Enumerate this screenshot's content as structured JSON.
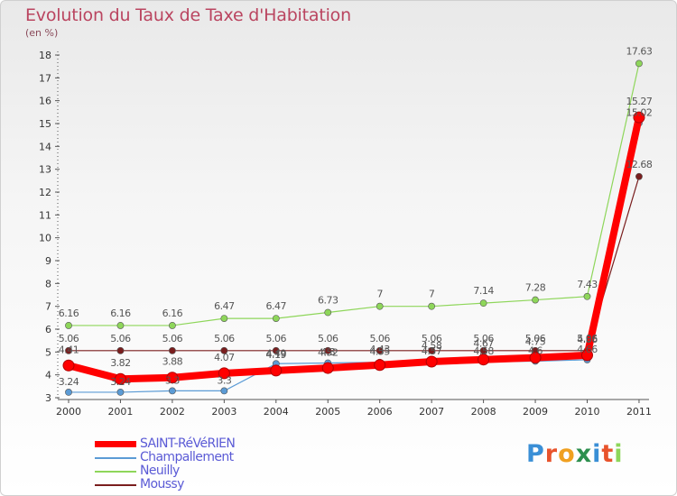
{
  "chart_data": {
    "type": "line",
    "title": "Evolution du Taux de Taxe d'Habitation",
    "unit_label": "(en %)",
    "x": [
      "2000",
      "2001",
      "2002",
      "2003",
      "2004",
      "2005",
      "2006",
      "2007",
      "2008",
      "2009",
      "2010",
      "2011"
    ],
    "ylim": [
      3,
      18
    ],
    "yticks": [
      "3",
      "4",
      "5",
      "6",
      "7",
      "8",
      "9",
      "10",
      "11",
      "12",
      "13",
      "14",
      "15",
      "16",
      "17",
      "18"
    ],
    "grid": false,
    "legend_position": "bottom-left",
    "series": [
      {
        "name": "SAINT-RéVéRIEN",
        "color": "#ff0000",
        "values": [
          4.41,
          3.82,
          3.88,
          4.07,
          4.19,
          4.3,
          4.43,
          4.58,
          4.67,
          4.75,
          4.86,
          15.27
        ],
        "labels": [
          "4.41",
          "3.82",
          "3.88",
          "4.07",
          "4.19",
          "4.3",
          "4.43",
          "4.58",
          "4.67",
          "4.75",
          "4.86",
          "15.27"
        ]
      },
      {
        "name": "Champallement",
        "color": "#5b9bd5",
        "values": [
          3.24,
          3.24,
          3.3,
          3.3,
          4.49,
          4.52,
          4.55,
          4.57,
          4.58,
          4.6,
          4.66,
          15.02
        ],
        "labels": [
          "3.24",
          "3.24",
          "3.3",
          "3.3",
          "4.49",
          "4.52",
          "4.55",
          "4.57",
          "4.58",
          "4.6",
          "4.66",
          "15.02"
        ]
      },
      {
        "name": "Neuilly",
        "color": "#8ed65a",
        "values": [
          6.16,
          6.16,
          6.16,
          6.47,
          6.47,
          6.73,
          7,
          7,
          7.14,
          7.28,
          7.43,
          17.63
        ],
        "labels": [
          "6.16",
          "6.16",
          "6.16",
          "6.47",
          "6.47",
          "6.73",
          "7",
          "7",
          "7.14",
          "7.28",
          "7.43",
          "17.63"
        ]
      },
      {
        "name": "Moussy",
        "color": "#7a1e1e",
        "values": [
          5.06,
          5.06,
          5.06,
          5.06,
          5.06,
          5.06,
          5.06,
          5.06,
          5.06,
          5.06,
          5.06,
          12.68
        ],
        "labels": [
          "5.06",
          "5.06",
          "5.06",
          "5.06",
          "5.06",
          "5.06",
          "5.06",
          "5.06",
          "5.06",
          "5.06",
          "5.06",
          "12.68"
        ]
      }
    ]
  },
  "legend": {
    "items": [
      {
        "label": "SAINT-RéVéRIEN",
        "color": "#ff0000"
      },
      {
        "label": "Champallement",
        "color": "#5b9bd5"
      },
      {
        "label": "Neuilly",
        "color": "#8ed65a"
      },
      {
        "label": "Moussy",
        "color": "#7a1e1e"
      }
    ]
  },
  "logo": {
    "letters": [
      "P",
      "r",
      "o",
      "x",
      "i",
      "t",
      "i"
    ],
    "colors": [
      "#3a8fd6",
      "#e8532c",
      "#f0a020",
      "#2d8f4e",
      "#3a8fd6",
      "#e8532c",
      "#8ed65a"
    ]
  }
}
